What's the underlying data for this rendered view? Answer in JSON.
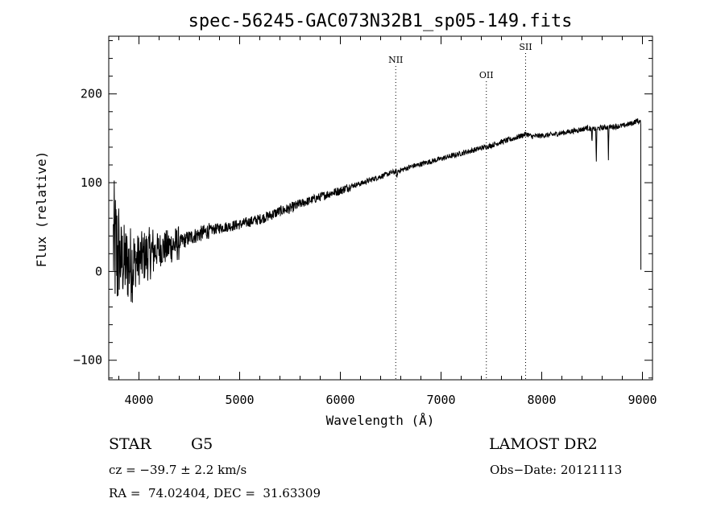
{
  "chart_data": {
    "type": "line",
    "title": "spec-56245-GAC073N32B1_sp05-149.fits",
    "xlabel": "Wavelength (Å)",
    "ylabel": "Flux (relative)",
    "xlim": [
      3700,
      9100
    ],
    "ylim": [
      -122,
      265
    ],
    "x_ticks": [
      4000,
      5000,
      6000,
      7000,
      8000,
      9000
    ],
    "y_ticks": [
      -100,
      0,
      100,
      200
    ],
    "grid": false,
    "line_color": "#000000",
    "anchors": {
      "x": [
        3750,
        3760,
        3775,
        3800,
        3850,
        3900,
        3950,
        4000,
        4100,
        4200,
        4300,
        4400,
        4500,
        4600,
        4700,
        4800,
        4900,
        5000,
        5100,
        5200,
        5300,
        5400,
        5500,
        5600,
        5700,
        5800,
        5900,
        6000,
        6100,
        6200,
        6300,
        6400,
        6500,
        6563,
        6600,
        6700,
        6800,
        6900,
        7000,
        7100,
        7200,
        7300,
        7400,
        7500,
        7600,
        7700,
        7800,
        7850,
        7900,
        8000,
        8100,
        8200,
        8300,
        8400,
        8450,
        8500,
        8600,
        8700,
        8800,
        8900,
        8950,
        8970
      ],
      "y": [
        30,
        25,
        20,
        15,
        10,
        8,
        10,
        14,
        20,
        25,
        28,
        32,
        38,
        42,
        46,
        49,
        51,
        53,
        56,
        59,
        63,
        68,
        71,
        76,
        80,
        84,
        88,
        91,
        96,
        99,
        103,
        107,
        111,
        113,
        114,
        118,
        121,
        124,
        127,
        130,
        133,
        136,
        139,
        142,
        146,
        149,
        153,
        155,
        152,
        153,
        154,
        156,
        158,
        160,
        162,
        160,
        162,
        163,
        164,
        167,
        170,
        168
      ]
    },
    "absorption_lines": [
      {
        "x": 6563,
        "depth": 10
      },
      {
        "x": 8498,
        "depth": 15
      },
      {
        "x": 8542,
        "depth": 40
      },
      {
        "x": 8662,
        "depth": 35
      }
    ],
    "edge": {
      "x_start": 8985,
      "y_end": 2
    },
    "annotations": [
      {
        "label": "NII",
        "x": 6550
      },
      {
        "label": "OII",
        "x": 7450
      },
      {
        "label": "SII",
        "x": 7840
      }
    ]
  },
  "info": {
    "object_class": "STAR",
    "subclass": "G5",
    "survey": "LAMOST DR2",
    "cz": "cz = −39.7 ± 2.2 km/s",
    "obs_date": "Obs−Date: 20121113",
    "coords": "RA =  74.02404, DEC =  31.63309"
  }
}
